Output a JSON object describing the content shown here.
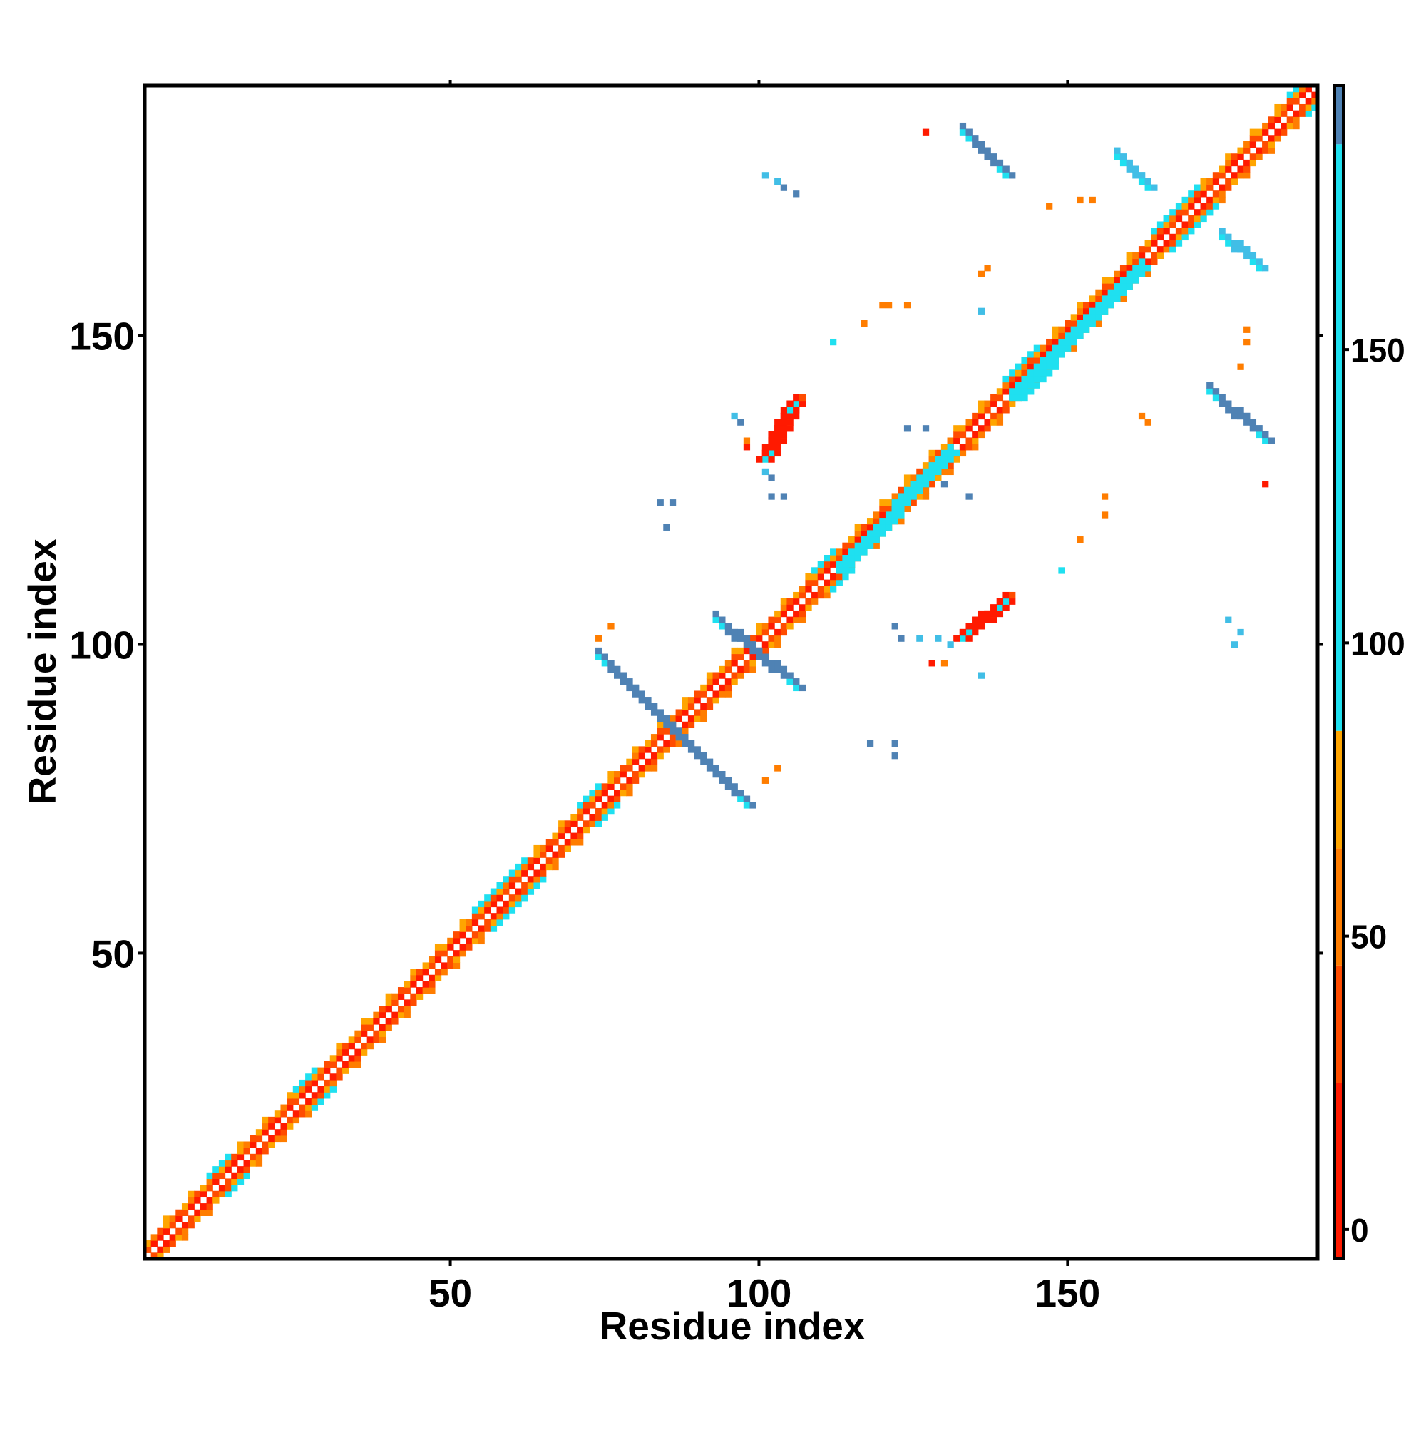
{
  "chart_data": {
    "type": "heatmap",
    "title": "",
    "xlabel": "Residue index",
    "ylabel": "Residue index",
    "xlim": [
      1,
      190
    ],
    "ylim": [
      1,
      190
    ],
    "x_ticks": [
      50,
      100,
      150
    ],
    "y_ticks": [
      50,
      100,
      150
    ],
    "colorbar": {
      "ticks": [
        0,
        50,
        100,
        150
      ],
      "range": [
        -5,
        195
      ],
      "bands": [
        {
          "from": -5,
          "to": 25,
          "color": "#ff1a00"
        },
        {
          "from": 25,
          "to": 45,
          "color": "#ff4c00"
        },
        {
          "from": 45,
          "to": 65,
          "color": "#ff7d00"
        },
        {
          "from": 65,
          "to": 85,
          "color": "#ffa500"
        },
        {
          "from": 85,
          "to": 185,
          "color": "#1fe0f0"
        },
        {
          "from": 185,
          "to": 195,
          "color": "#4f82b4"
        }
      ],
      "top_color": "#ffffff"
    },
    "colors": {
      "red": "#ff1a00",
      "red_orange": "#ff4c00",
      "orange": "#ff7d00",
      "amber": "#ffa500",
      "cyan": "#1fe0f0",
      "sky": "#41bee6",
      "steel": "#4f82b4"
    },
    "diagonal": {
      "start": 1,
      "end": 190
    },
    "clusters": [
      {
        "x": [
          74,
          98
        ],
        "y": [
          98,
          74
        ],
        "color": "steel",
        "note": "antiparallel contacts crossing diagonal"
      },
      {
        "x": [
          93,
          106
        ],
        "y": [
          104,
          93
        ],
        "color": "steel"
      },
      {
        "x": [
          101,
          106
        ],
        "y": [
          130,
          139
        ],
        "color": "red"
      },
      {
        "x": [
          133,
          140
        ],
        "y": [
          101,
          107
        ],
        "color": "red"
      },
      {
        "x": [
          133,
          140
        ],
        "y": [
          183,
          176
        ],
        "color": "steel"
      },
      {
        "x": [
          158,
          163
        ],
        "y": [
          179,
          174
        ],
        "color": "sky"
      },
      {
        "x": [
          175,
          181
        ],
        "y": [
          166,
          161
        ],
        "color": "sky"
      },
      {
        "x": [
          173,
          182
        ],
        "y": [
          141,
          133
        ],
        "color": "steel"
      },
      {
        "x": [
          141,
          162
        ],
        "y": [
          140,
          161
        ],
        "color": "cyan",
        "note": "parallel band near diagonal"
      },
      {
        "x": [
          113,
          131
        ],
        "y": [
          112,
          131
        ],
        "color": "cyan",
        "note": "parallel band near diagonal"
      }
    ],
    "scatter_points": [
      {
        "x": 127,
        "y": 183,
        "color": "red"
      },
      {
        "x": 101,
        "y": 176,
        "color": "sky"
      },
      {
        "x": 103,
        "y": 175,
        "color": "sky"
      },
      {
        "x": 104,
        "y": 174,
        "color": "steel"
      },
      {
        "x": 106,
        "y": 173,
        "color": "steel"
      },
      {
        "x": 147,
        "y": 171,
        "color": "orange"
      },
      {
        "x": 152,
        "y": 172,
        "color": "orange"
      },
      {
        "x": 154,
        "y": 172,
        "color": "orange"
      },
      {
        "x": 136,
        "y": 160,
        "color": "orange"
      },
      {
        "x": 137,
        "y": 161,
        "color": "orange"
      },
      {
        "x": 120,
        "y": 155,
        "color": "orange"
      },
      {
        "x": 121,
        "y": 155,
        "color": "orange"
      },
      {
        "x": 124,
        "y": 155,
        "color": "orange"
      },
      {
        "x": 117,
        "y": 152,
        "color": "orange"
      },
      {
        "x": 136,
        "y": 154,
        "color": "sky"
      },
      {
        "x": 112,
        "y": 149,
        "color": "cyan"
      },
      {
        "x": 179,
        "y": 151,
        "color": "orange"
      },
      {
        "x": 178,
        "y": 145,
        "color": "orange"
      },
      {
        "x": 179,
        "y": 149,
        "color": "orange"
      },
      {
        "x": 162,
        "y": 137,
        "color": "orange"
      },
      {
        "x": 163,
        "y": 136,
        "color": "orange"
      },
      {
        "x": 96,
        "y": 137,
        "color": "sky"
      },
      {
        "x": 97,
        "y": 136,
        "color": "steel"
      },
      {
        "x": 98,
        "y": 133,
        "color": "orange"
      },
      {
        "x": 98,
        "y": 132,
        "color": "red"
      },
      {
        "x": 101,
        "y": 128,
        "color": "sky"
      },
      {
        "x": 102,
        "y": 127,
        "color": "steel"
      },
      {
        "x": 102,
        "y": 124,
        "color": "steel"
      },
      {
        "x": 104,
        "y": 124,
        "color": "steel"
      },
      {
        "x": 84,
        "y": 123,
        "color": "steel"
      },
      {
        "x": 86,
        "y": 123,
        "color": "steel"
      },
      {
        "x": 85,
        "y": 119,
        "color": "steel"
      },
      {
        "x": 124,
        "y": 135,
        "color": "steel"
      },
      {
        "x": 127,
        "y": 135,
        "color": "steel"
      },
      {
        "x": 130,
        "y": 126,
        "color": "steel"
      },
      {
        "x": 134,
        "y": 124,
        "color": "steel"
      },
      {
        "x": 182,
        "y": 126,
        "color": "red"
      },
      {
        "x": 156,
        "y": 124,
        "color": "orange"
      },
      {
        "x": 156,
        "y": 121,
        "color": "orange"
      },
      {
        "x": 152,
        "y": 117,
        "color": "orange"
      },
      {
        "x": 149,
        "y": 112,
        "color": "cyan"
      },
      {
        "x": 122,
        "y": 103,
        "color": "steel"
      },
      {
        "x": 123,
        "y": 101,
        "color": "steel"
      },
      {
        "x": 126,
        "y": 101,
        "color": "sky"
      },
      {
        "x": 129,
        "y": 101,
        "color": "sky"
      },
      {
        "x": 131,
        "y": 100,
        "color": "sky"
      },
      {
        "x": 128,
        "y": 97,
        "color": "red"
      },
      {
        "x": 130,
        "y": 97,
        "color": "orange"
      },
      {
        "x": 136,
        "y": 95,
        "color": "sky"
      },
      {
        "x": 176,
        "y": 104,
        "color": "sky"
      },
      {
        "x": 178,
        "y": 102,
        "color": "sky"
      },
      {
        "x": 177,
        "y": 100,
        "color": "sky"
      },
      {
        "x": 76,
        "y": 103,
        "color": "orange"
      },
      {
        "x": 74,
        "y": 101,
        "color": "orange"
      },
      {
        "x": 118,
        "y": 84,
        "color": "steel"
      },
      {
        "x": 122,
        "y": 84,
        "color": "steel"
      },
      {
        "x": 122,
        "y": 82,
        "color": "steel"
      },
      {
        "x": 101,
        "y": 78,
        "color": "orange"
      },
      {
        "x": 103,
        "y": 80,
        "color": "orange"
      }
    ]
  }
}
